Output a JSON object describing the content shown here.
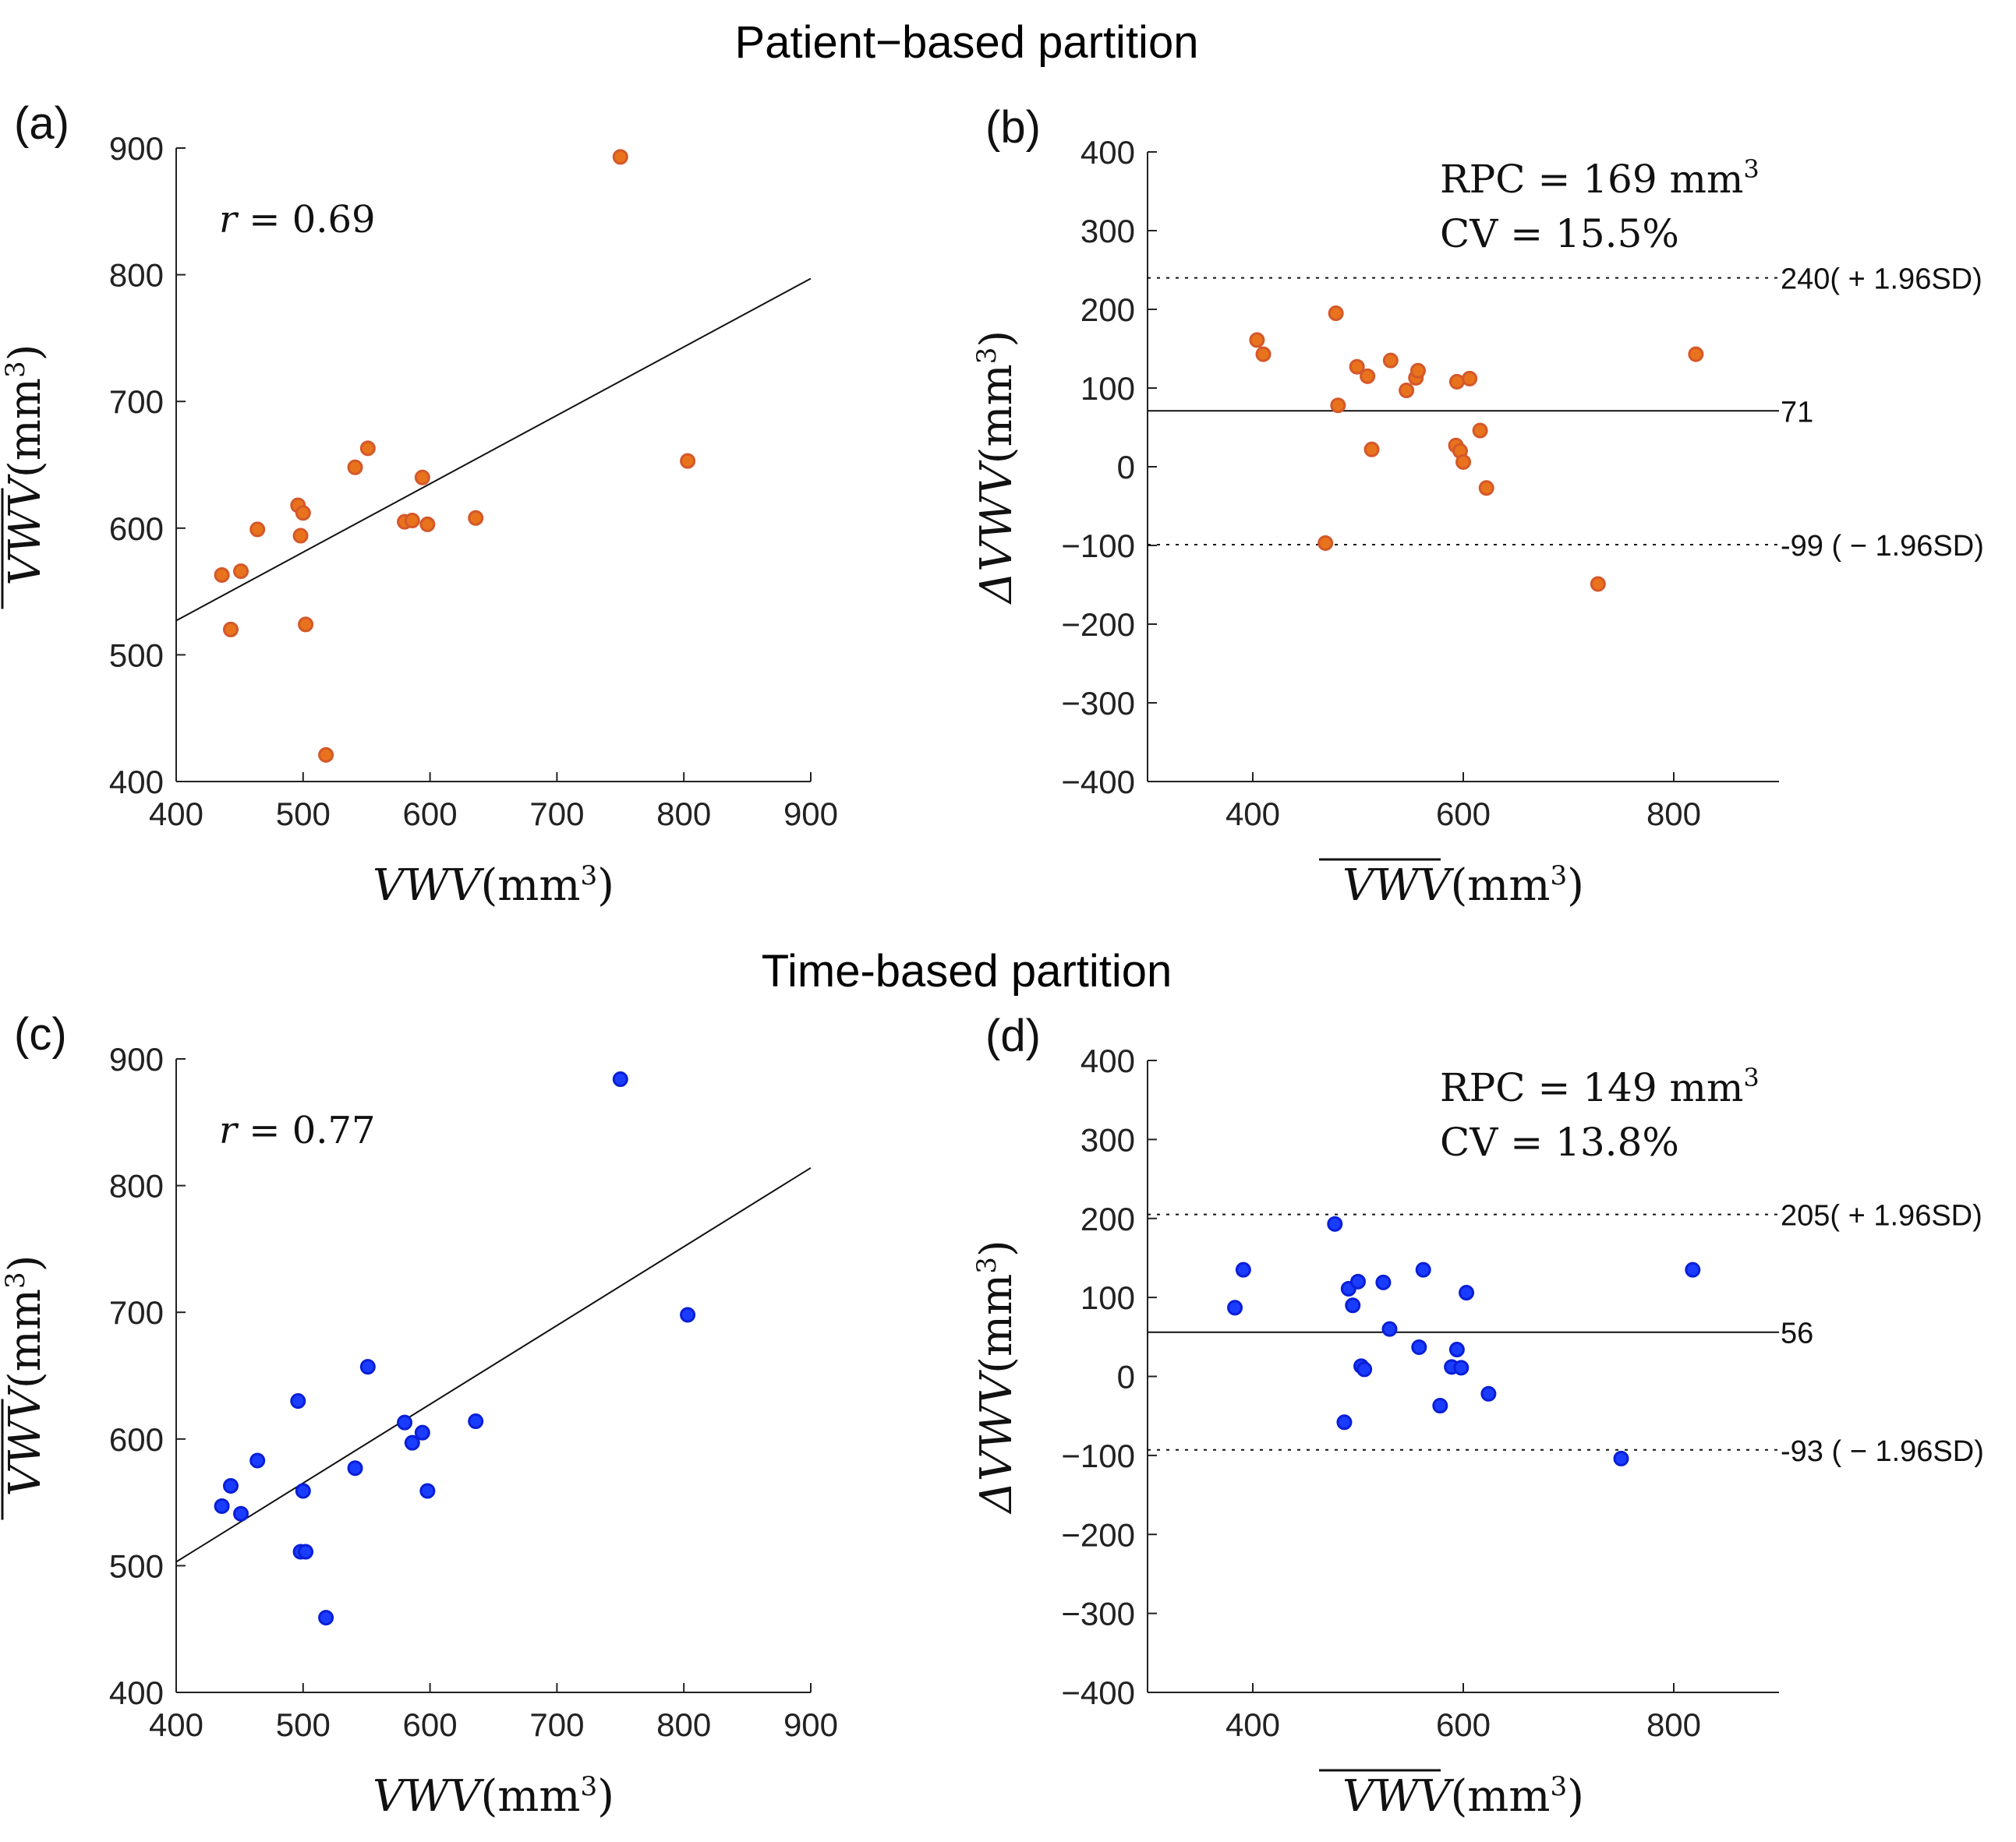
{
  "figure": {
    "top_title": "Patient−based partition",
    "bottom_title": "Time-based partition"
  },
  "colors": {
    "orange": "#e8731c",
    "orange_edge": "#d4582a",
    "blue": "#1a3cff",
    "blue_edge": "#0a1fd6"
  },
  "chart_data": [
    {
      "panel": "(a)",
      "type": "scatter",
      "r_label": "r = 0.69",
      "xlabel": "VWV (mm³)",
      "ylabel": "VWV (mm³) with overline and hat",
      "xlim": [
        400,
        900
      ],
      "ylim": [
        400,
        900
      ],
      "xticks": [
        400,
        500,
        600,
        700,
        800,
        900
      ],
      "yticks": [
        400,
        500,
        600,
        700,
        800,
        900
      ],
      "color": "orange",
      "fit_line": [
        [
          400,
          527
        ],
        [
          900,
          797
        ]
      ],
      "points": [
        [
          436,
          563
        ],
        [
          443,
          520
        ],
        [
          451,
          566
        ],
        [
          464,
          599
        ],
        [
          496,
          618
        ],
        [
          498,
          594
        ],
        [
          500,
          612
        ],
        [
          502,
          524
        ],
        [
          518,
          421
        ],
        [
          541,
          648
        ],
        [
          551,
          663
        ],
        [
          580,
          605
        ],
        [
          586,
          606
        ],
        [
          594,
          640
        ],
        [
          598,
          603
        ],
        [
          636,
          608
        ],
        [
          750,
          893
        ],
        [
          803,
          653
        ]
      ]
    },
    {
      "panel": "(b)",
      "type": "scatter",
      "rpc_label": "RPC = 169 mm³",
      "cv_label": "CV = 15.5%",
      "xlabel": "VWV (mm³) with overline",
      "ylabel": "ΔVWV (mm³)",
      "xlim": [
        300,
        900
      ],
      "ylim": [
        -400,
        400
      ],
      "xticks": [
        400,
        600,
        800
      ],
      "yticks": [
        -400,
        -300,
        -200,
        -100,
        0,
        100,
        200,
        300,
        400
      ],
      "color": "orange",
      "mean_line": {
        "value": 71,
        "label": "71"
      },
      "upper_line": {
        "value": 240,
        "label": "240( + 1.96SD)"
      },
      "lower_line": {
        "value": -99,
        "label": "-99 ( − 1.96SD)"
      },
      "points": [
        [
          404,
          161
        ],
        [
          410,
          143
        ],
        [
          469,
          -97
        ],
        [
          479,
          195
        ],
        [
          481,
          78
        ],
        [
          499,
          127
        ],
        [
          509,
          115
        ],
        [
          513,
          22
        ],
        [
          531,
          135
        ],
        [
          546,
          97
        ],
        [
          555,
          113
        ],
        [
          557,
          122
        ],
        [
          593,
          27
        ],
        [
          594,
          108
        ],
        [
          597,
          20
        ],
        [
          600,
          6
        ],
        [
          606,
          112
        ],
        [
          616,
          46
        ],
        [
          622,
          -27
        ],
        [
          728,
          -149
        ],
        [
          821,
          143
        ]
      ]
    },
    {
      "panel": "(c)",
      "type": "scatter",
      "r_label": "r = 0.77",
      "xlabel": "VWV (mm³)",
      "ylabel": "VWV (mm³) with overline and hat",
      "xlim": [
        400,
        900
      ],
      "ylim": [
        400,
        900
      ],
      "xticks": [
        400,
        500,
        600,
        700,
        800,
        900
      ],
      "yticks": [
        400,
        500,
        600,
        700,
        800,
        900
      ],
      "color": "blue",
      "fit_line": [
        [
          400,
          503
        ],
        [
          900,
          814
        ]
      ],
      "points": [
        [
          436,
          547
        ],
        [
          443,
          563
        ],
        [
          451,
          541
        ],
        [
          464,
          583
        ],
        [
          496,
          630
        ],
        [
          498,
          511
        ],
        [
          500,
          559
        ],
        [
          502,
          511
        ],
        [
          518,
          459
        ],
        [
          541,
          577
        ],
        [
          551,
          657
        ],
        [
          580,
          613
        ],
        [
          586,
          597
        ],
        [
          594,
          605
        ],
        [
          598,
          559
        ],
        [
          636,
          614
        ],
        [
          750,
          884
        ],
        [
          803,
          698
        ]
      ]
    },
    {
      "panel": "(d)",
      "type": "scatter",
      "rpc_label": "RPC = 149 mm³",
      "cv_label": "CV = 13.8%",
      "xlabel": "VWV (mm³) with overline",
      "ylabel": "ΔVWV (mm³)",
      "xlim": [
        300,
        900
      ],
      "ylim": [
        -400,
        400
      ],
      "xticks": [
        400,
        600,
        800
      ],
      "yticks": [
        -400,
        -300,
        -200,
        -100,
        0,
        100,
        200,
        300,
        400
      ],
      "color": "blue",
      "mean_line": {
        "value": 56,
        "label": "56"
      },
      "upper_line": {
        "value": 205,
        "label": "205( + 1.96SD)"
      },
      "lower_line": {
        "value": -93,
        "label": "-93 ( − 1.96SD)"
      },
      "points": [
        [
          383,
          87
        ],
        [
          391,
          135
        ],
        [
          478,
          193
        ],
        [
          487,
          -58
        ],
        [
          491,
          111
        ],
        [
          495,
          90
        ],
        [
          500,
          120
        ],
        [
          503,
          13
        ],
        [
          506,
          9
        ],
        [
          524,
          119
        ],
        [
          530,
          60
        ],
        [
          558,
          37
        ],
        [
          562,
          135
        ],
        [
          578,
          -37
        ],
        [
          589,
          12
        ],
        [
          594,
          34
        ],
        [
          598,
          11
        ],
        [
          603,
          106
        ],
        [
          624,
          -22
        ],
        [
          750,
          -104
        ],
        [
          818,
          135
        ]
      ]
    }
  ]
}
